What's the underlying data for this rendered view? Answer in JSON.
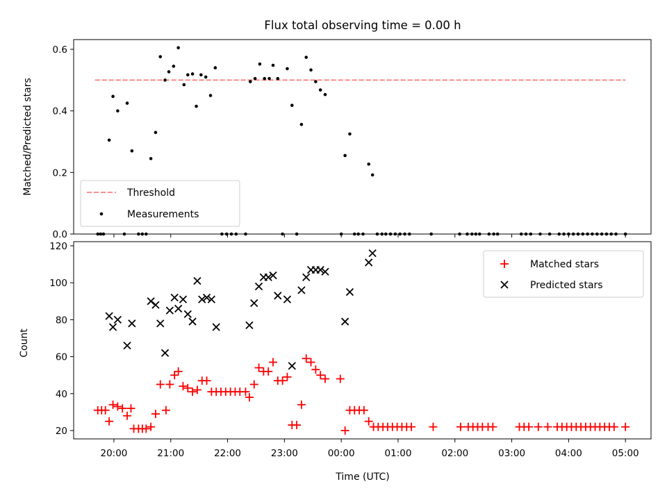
{
  "chart_data": [
    {
      "type": "scatter",
      "panel": "top",
      "title": "Flux total observing time = 0.00 h",
      "xlabel": "",
      "ylabel": "Matched/Predicted stars",
      "xlim": [
        "19:30",
        "05:30"
      ],
      "ylim": [
        0,
        0.63
      ],
      "yticks": [
        "0.0",
        "0.2",
        "0.4",
        "0.6"
      ],
      "threshold": {
        "name": "Threshold",
        "value": 0.5,
        "x_range": [
          "19:40",
          "05:00"
        ],
        "color": "#ff7f7f",
        "style": "dashed"
      },
      "series": [
        {
          "name": "Measurements",
          "color": "#000000",
          "marker": "dot",
          "points": [
            [
              "19:43",
              0
            ],
            [
              "19:46",
              0
            ],
            [
              "19:49",
              0
            ],
            [
              "19:55",
              0.305
            ],
            [
              "19:59",
              0.447
            ],
            [
              "20:04",
              0.4
            ],
            [
              "20:11",
              0
            ],
            [
              "20:14",
              0.425
            ],
            [
              "20:19",
              0.27
            ],
            [
              "20:26",
              0
            ],
            [
              "20:30",
              0
            ],
            [
              "20:34",
              0
            ],
            [
              "20:39",
              0.245
            ],
            [
              "20:44",
              0.33
            ],
            [
              "20:49",
              0.576
            ],
            [
              "20:54",
              0.5
            ],
            [
              "20:58",
              0.527
            ],
            [
              "21:03",
              0.545
            ],
            [
              "21:08",
              0.605
            ],
            [
              "21:14",
              0.485
            ],
            [
              "21:18",
              0.517
            ],
            [
              "21:23",
              0.52
            ],
            [
              "21:27",
              0.415
            ],
            [
              "21:32",
              0.517
            ],
            [
              "21:37",
              0.51
            ],
            [
              "21:42",
              0.45
            ],
            [
              "21:47",
              0.54
            ],
            [
              "21:54",
              0
            ],
            [
              "21:59",
              0
            ],
            [
              "22:04",
              0
            ],
            [
              "22:09",
              0
            ],
            [
              "22:19",
              0
            ],
            [
              "22:24",
              0.495
            ],
            [
              "22:29",
              0.505
            ],
            [
              "22:34",
              0.552
            ],
            [
              "22:39",
              0.505
            ],
            [
              "22:44",
              0.505
            ],
            [
              "22:48",
              0.548
            ],
            [
              "22:53",
              0.505
            ],
            [
              "22:58",
              0
            ],
            [
              "23:03",
              0.537
            ],
            [
              "23:08",
              0.418
            ],
            [
              "23:13",
              0
            ],
            [
              "23:18",
              0.356
            ],
            [
              "23:23",
              0.574
            ],
            [
              "23:28",
              0.533
            ],
            [
              "23:33",
              0.495
            ],
            [
              "23:38",
              0.468
            ],
            [
              "23:43",
              0.453
            ],
            [
              "00:00",
              0
            ],
            [
              "00:04",
              0.255
            ],
            [
              "00:09",
              0.325
            ],
            [
              "00:14",
              0
            ],
            [
              "00:18",
              0
            ],
            [
              "00:23",
              0
            ],
            [
              "00:29",
              0.227
            ],
            [
              "00:33",
              0.192
            ],
            [
              "00:38",
              0
            ],
            [
              "00:43",
              0
            ],
            [
              "00:47",
              0
            ],
            [
              "00:52",
              0
            ],
            [
              "00:57",
              0
            ],
            [
              "01:02",
              0
            ],
            [
              "01:07",
              0
            ],
            [
              "01:12",
              0
            ],
            [
              "01:35",
              0
            ],
            [
              "02:05",
              0
            ],
            [
              "02:13",
              0
            ],
            [
              "02:18",
              0
            ],
            [
              "02:22",
              0
            ],
            [
              "02:26",
              0
            ],
            [
              "02:36",
              0
            ],
            [
              "02:41",
              0
            ],
            [
              "02:45",
              0
            ],
            [
              "03:10",
              0
            ],
            [
              "03:15",
              0
            ],
            [
              "03:20",
              0
            ],
            [
              "03:30",
              0
            ],
            [
              "03:40",
              0
            ],
            [
              "03:50",
              0
            ],
            [
              "03:55",
              0
            ],
            [
              "04:00",
              0
            ],
            [
              "04:05",
              0
            ],
            [
              "04:10",
              0
            ],
            [
              "04:15",
              0
            ],
            [
              "04:20",
              0
            ],
            [
              "04:25",
              0
            ],
            [
              "04:30",
              0
            ],
            [
              "04:35",
              0
            ],
            [
              "04:40",
              0
            ],
            [
              "04:45",
              0
            ],
            [
              "04:50",
              0
            ],
            [
              "05:00",
              0
            ]
          ]
        }
      ],
      "legend": {
        "position": "lower-left",
        "entries": [
          "Threshold",
          "Measurements"
        ]
      }
    },
    {
      "type": "scatter",
      "panel": "bottom",
      "title": "",
      "xlabel": "Time (UTC)",
      "ylabel": "Count",
      "xlim": [
        "19:30",
        "05:30"
      ],
      "ylim": [
        15,
        122
      ],
      "yticks": [
        "20",
        "40",
        "60",
        "80",
        "100",
        "120"
      ],
      "xticks": [
        "20:00",
        "21:00",
        "22:00",
        "23:00",
        "00:00",
        "01:00",
        "02:00",
        "03:00",
        "04:00",
        "05:00"
      ],
      "series": [
        {
          "name": "Matched stars",
          "color": "#ff0000",
          "marker": "plus",
          "points": [
            [
              "19:43",
              31
            ],
            [
              "19:47",
              31
            ],
            [
              "19:51",
              31
            ],
            [
              "19:55",
              25
            ],
            [
              "19:59",
              34
            ],
            [
              "20:04",
              33
            ],
            [
              "20:09",
              32
            ],
            [
              "20:14",
              28
            ],
            [
              "20:18",
              32
            ],
            [
              "20:21",
              21
            ],
            [
              "20:26",
              21
            ],
            [
              "20:30",
              21
            ],
            [
              "20:34",
              21
            ],
            [
              "20:39",
              22
            ],
            [
              "20:44",
              29
            ],
            [
              "20:49",
              45
            ],
            [
              "20:55",
              31
            ],
            [
              "20:59",
              45
            ],
            [
              "21:04",
              50
            ],
            [
              "21:08",
              52
            ],
            [
              "21:13",
              44
            ],
            [
              "21:18",
              43
            ],
            [
              "21:23",
              41
            ],
            [
              "21:28",
              42
            ],
            [
              "21:33",
              47
            ],
            [
              "21:38",
              47
            ],
            [
              "21:43",
              41
            ],
            [
              "21:48",
              41
            ],
            [
              "21:53",
              41
            ],
            [
              "21:58",
              41
            ],
            [
              "22:03",
              41
            ],
            [
              "22:08",
              41
            ],
            [
              "22:13",
              41
            ],
            [
              "22:19",
              41
            ],
            [
              "22:23",
              38
            ],
            [
              "22:28",
              45
            ],
            [
              "22:33",
              54
            ],
            [
              "22:38",
              52
            ],
            [
              "22:43",
              52
            ],
            [
              "22:48",
              57
            ],
            [
              "22:53",
              47
            ],
            [
              "22:58",
              47
            ],
            [
              "23:03",
              49
            ],
            [
              "23:08",
              23
            ],
            [
              "23:13",
              23
            ],
            [
              "23:18",
              34
            ],
            [
              "23:23",
              59
            ],
            [
              "23:28",
              57
            ],
            [
              "23:33",
              53
            ],
            [
              "23:38",
              50
            ],
            [
              "23:43",
              48
            ],
            [
              "23:59",
              48
            ],
            [
              "00:04",
              20
            ],
            [
              "00:09",
              31
            ],
            [
              "00:14",
              31
            ],
            [
              "00:19",
              31
            ],
            [
              "00:24",
              31
            ],
            [
              "00:29",
              25
            ],
            [
              "00:34",
              22
            ],
            [
              "00:39",
              22
            ],
            [
              "00:44",
              22
            ],
            [
              "00:49",
              22
            ],
            [
              "00:54",
              22
            ],
            [
              "00:59",
              22
            ],
            [
              "01:04",
              22
            ],
            [
              "01:09",
              22
            ],
            [
              "01:14",
              22
            ],
            [
              "01:37",
              22
            ],
            [
              "02:06",
              22
            ],
            [
              "02:14",
              22
            ],
            [
              "02:19",
              22
            ],
            [
              "02:24",
              22
            ],
            [
              "02:29",
              22
            ],
            [
              "02:35",
              22
            ],
            [
              "02:40",
              22
            ],
            [
              "03:08",
              22
            ],
            [
              "03:13",
              22
            ],
            [
              "03:18",
              22
            ],
            [
              "03:28",
              22
            ],
            [
              "03:38",
              22
            ],
            [
              "03:48",
              22
            ],
            [
              "03:53",
              22
            ],
            [
              "03:58",
              22
            ],
            [
              "04:03",
              22
            ],
            [
              "04:08",
              22
            ],
            [
              "04:13",
              22
            ],
            [
              "04:18",
              22
            ],
            [
              "04:23",
              22
            ],
            [
              "04:28",
              22
            ],
            [
              "04:33",
              22
            ],
            [
              "04:38",
              22
            ],
            [
              "04:43",
              22
            ],
            [
              "04:48",
              22
            ],
            [
              "05:00",
              22
            ]
          ]
        },
        {
          "name": "Predicted stars",
          "color": "#000000",
          "marker": "x",
          "points": [
            [
              "19:55",
              82
            ],
            [
              "19:59",
              76
            ],
            [
              "20:04",
              80
            ],
            [
              "20:14",
              66
            ],
            [
              "20:19",
              78
            ],
            [
              "20:39",
              90
            ],
            [
              "20:44",
              88
            ],
            [
              "20:49",
              78
            ],
            [
              "20:54",
              62
            ],
            [
              "20:59",
              85
            ],
            [
              "21:04",
              92
            ],
            [
              "21:08",
              86
            ],
            [
              "21:13",
              91
            ],
            [
              "21:18",
              83
            ],
            [
              "21:23",
              79
            ],
            [
              "21:28",
              101
            ],
            [
              "21:33",
              91
            ],
            [
              "21:38",
              92
            ],
            [
              "21:43",
              91
            ],
            [
              "21:48",
              76
            ],
            [
              "22:23",
              77
            ],
            [
              "22:28",
              89
            ],
            [
              "22:33",
              98
            ],
            [
              "22:38",
              103
            ],
            [
              "22:43",
              103
            ],
            [
              "22:48",
              104
            ],
            [
              "22:53",
              93
            ],
            [
              "23:03",
              91
            ],
            [
              "23:08",
              55
            ],
            [
              "23:18",
              96
            ],
            [
              "23:23",
              103
            ],
            [
              "23:28",
              107
            ],
            [
              "23:33",
              107
            ],
            [
              "23:38",
              107
            ],
            [
              "23:43",
              106
            ],
            [
              "00:04",
              79
            ],
            [
              "00:09",
              95
            ],
            [
              "00:29",
              111
            ],
            [
              "00:33",
              116
            ]
          ]
        }
      ],
      "legend": {
        "position": "upper-right",
        "entries": [
          "Matched stars",
          "Predicted stars"
        ]
      }
    }
  ]
}
